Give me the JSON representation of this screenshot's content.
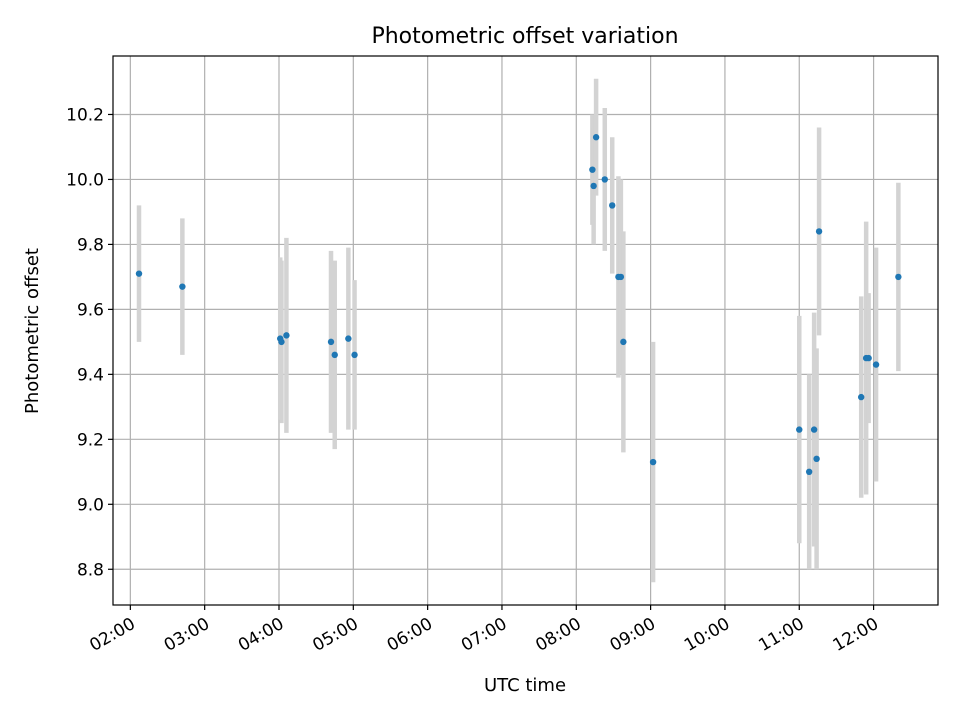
{
  "chart_data": {
    "type": "scatter",
    "title": "Photometric offset variation",
    "xlabel": "UTC time",
    "ylabel": "Photometric offset",
    "grid": true,
    "xlim": [
      "01:46",
      "12:52"
    ],
    "ylim": [
      8.69,
      10.38
    ],
    "x_ticks": [
      "02:00",
      "03:00",
      "04:00",
      "05:00",
      "06:00",
      "07:00",
      "08:00",
      "09:00",
      "10:00",
      "11:00",
      "12:00"
    ],
    "y_ticks": [
      8.8,
      9.0,
      9.2,
      9.4,
      9.6,
      9.8,
      10.0,
      10.2
    ],
    "colors": {
      "points": "#1f77b4",
      "errorbars": "#d3d3d3",
      "grid": "#b0b0b0"
    },
    "points": [
      {
        "x": "02:07",
        "y": 9.71,
        "err": 0.21
      },
      {
        "x": "02:42",
        "y": 9.67,
        "err": 0.21
      },
      {
        "x": "04:01",
        "y": 9.51,
        "err": 0.25
      },
      {
        "x": "04:02",
        "y": 9.5,
        "err": 0.25
      },
      {
        "x": "04:06",
        "y": 9.52,
        "err": 0.3
      },
      {
        "x": "04:42",
        "y": 9.5,
        "err": 0.28
      },
      {
        "x": "04:45",
        "y": 9.46,
        "err": 0.29
      },
      {
        "x": "04:56",
        "y": 9.51,
        "err": 0.28
      },
      {
        "x": "05:01",
        "y": 9.46,
        "err": 0.23
      },
      {
        "x": "08:13",
        "y": 10.03,
        "err": 0.17
      },
      {
        "x": "08:14",
        "y": 9.98,
        "err": 0.18
      },
      {
        "x": "08:16",
        "y": 10.13,
        "err": 0.18
      },
      {
        "x": "08:23",
        "y": 10.0,
        "err": 0.22
      },
      {
        "x": "08:29",
        "y": 9.92,
        "err": 0.21
      },
      {
        "x": "08:34",
        "y": 9.7,
        "err": 0.31
      },
      {
        "x": "08:36",
        "y": 9.7,
        "err": 0.3
      },
      {
        "x": "08:38",
        "y": 9.5,
        "err": 0.34
      },
      {
        "x": "09:02",
        "y": 9.13,
        "err": 0.37
      },
      {
        "x": "11:00",
        "y": 9.23,
        "err": 0.35
      },
      {
        "x": "11:08",
        "y": 9.1,
        "err": 0.3
      },
      {
        "x": "11:12",
        "y": 9.23,
        "err": 0.36
      },
      {
        "x": "11:14",
        "y": 9.14,
        "err": 0.34
      },
      {
        "x": "11:16",
        "y": 9.84,
        "err": 0.32
      },
      {
        "x": "11:50",
        "y": 9.33,
        "err": 0.31
      },
      {
        "x": "11:54",
        "y": 9.45,
        "err": 0.42
      },
      {
        "x": "11:56",
        "y": 9.45,
        "err": 0.2
      },
      {
        "x": "12:02",
        "y": 9.43,
        "err": 0.36
      },
      {
        "x": "12:20",
        "y": 9.7,
        "err": 0.29
      }
    ]
  }
}
